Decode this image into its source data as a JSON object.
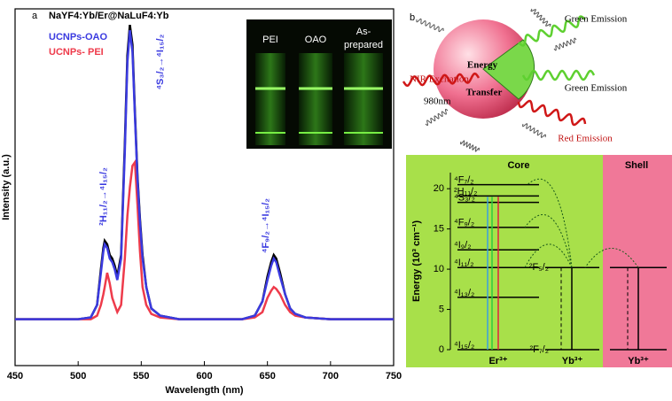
{
  "chart_data": [
    {
      "type": "line",
      "panel": "a",
      "title": "NaYF4:Yb/Er@NaLuF4:Yb",
      "x_label": "Wavelength (nm)",
      "y_label": "Intensity (a.u.)",
      "x": [
        450,
        500,
        510,
        515,
        518,
        520,
        521,
        523,
        525,
        527,
        529,
        531,
        534,
        537,
        539,
        541,
        543,
        545,
        547,
        549,
        551,
        554,
        558,
        565,
        580,
        630,
        640,
        646,
        650,
        653,
        655,
        657,
        660,
        664,
        668,
        672,
        680,
        700,
        750
      ],
      "series": [
        {
          "name": "UCNPs-OAO",
          "color": "#3a3ae0",
          "values": [
            0.13,
            0.13,
            0.135,
            0.17,
            0.26,
            0.32,
            0.34,
            0.33,
            0.3,
            0.29,
            0.27,
            0.24,
            0.3,
            0.6,
            0.85,
            0.94,
            0.88,
            0.7,
            0.52,
            0.4,
            0.3,
            0.22,
            0.16,
            0.14,
            0.13,
            0.13,
            0.14,
            0.18,
            0.24,
            0.28,
            0.3,
            0.29,
            0.25,
            0.2,
            0.16,
            0.145,
            0.135,
            0.13,
            0.13
          ]
        },
        {
          "name": "UCNPs- PEI",
          "color": "#ee3b4b",
          "values": [
            0.13,
            0.13,
            0.13,
            0.14,
            0.17,
            0.2,
            0.22,
            0.26,
            0.23,
            0.19,
            0.17,
            0.15,
            0.17,
            0.3,
            0.42,
            0.5,
            0.56,
            0.57,
            0.45,
            0.32,
            0.22,
            0.17,
            0.145,
            0.135,
            0.13,
            0.13,
            0.135,
            0.15,
            0.19,
            0.21,
            0.22,
            0.215,
            0.2,
            0.17,
            0.15,
            0.14,
            0.135,
            0.13,
            0.13
          ]
        },
        {
          "color": "#000000",
          "values": [
            0.13,
            0.13,
            0.135,
            0.17,
            0.27,
            0.33,
            0.35,
            0.34,
            0.31,
            0.3,
            0.28,
            0.25,
            0.31,
            0.62,
            0.87,
            0.955,
            0.9,
            0.71,
            0.53,
            0.41,
            0.31,
            0.22,
            0.16,
            0.14,
            0.13,
            0.13,
            0.14,
            0.18,
            0.25,
            0.29,
            0.31,
            0.3,
            0.26,
            0.2,
            0.16,
            0.145,
            0.135,
            0.13,
            0.13
          ]
        }
      ],
      "xlim": [
        450,
        750
      ],
      "xticks": [
        450,
        500,
        550,
        600,
        650,
        700,
        750
      ],
      "ylim": [
        0,
        1
      ],
      "annotations": [
        "²H₁₁/₂→⁴I₁₅/₂",
        "⁴S₃/₂→⁴I₁₅/₂",
        "⁴F₉/₂→⁴I₁₅/₂"
      ],
      "inset_labels": [
        [
          "PEI"
        ],
        [
          "OAO"
        ],
        [
          "As-",
          "prepared"
        ]
      ]
    },
    {
      "type": "energy-levels",
      "panel": "b",
      "y_label": "Energy (10³ cm⁻¹)",
      "ylim": [
        0,
        22
      ],
      "yticks": [
        0,
        5,
        10,
        15,
        20
      ],
      "regions": [
        "Core",
        "Shell"
      ],
      "ions": [
        {
          "name": "Er³⁺",
          "levels": [
            {
              "label": "⁴I₁₅/₂",
              "value": 0
            },
            {
              "label": "⁴I₁₃/₂",
              "value": 6.5
            },
            {
              "label": "⁴I₁₁/₂",
              "value": 10.2
            },
            {
              "label": "⁴I₉/₂",
              "value": 12.4
            },
            {
              "label": "⁴F₉/₂",
              "value": 15.2
            },
            {
              "label": "⁴S₃/₂",
              "value": 18.3
            },
            {
              "label": "²H₁₁/₂",
              "value": 19.1
            },
            {
              "label": "⁴F₇/₂",
              "value": 20.5
            }
          ]
        },
        {
          "name": "Yb³⁺",
          "levels": [
            {
              "label": "²F₇/₂",
              "value": 0
            },
            {
              "label": "²F₅/₂",
              "value": 10.2
            }
          ]
        },
        {
          "name": "Yb³⁺",
          "levels": [
            {
              "value": 0
            },
            {
              "value": 10.2
            }
          ]
        }
      ],
      "schematic": {
        "excitation": "NIR Excitation",
        "wavelength": "980nm",
        "transfer": [
          "Energy",
          "Transfer"
        ],
        "emissions": [
          "Green Emission",
          "Green Emission",
          "Red Emission"
        ]
      }
    }
  ]
}
